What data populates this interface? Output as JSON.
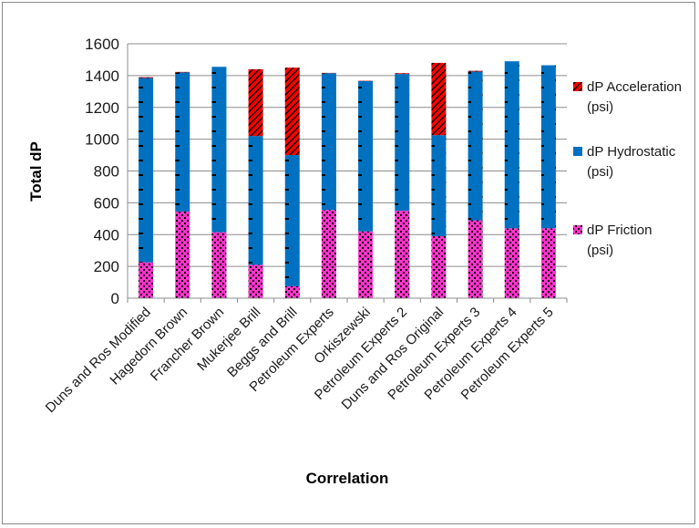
{
  "chart_data": {
    "type": "bar",
    "stacked": true,
    "xlabel": "Correlation",
    "ylabel": "Total dP",
    "ylim": [
      0,
      1600
    ],
    "yticks": [
      0,
      200,
      400,
      600,
      800,
      1000,
      1200,
      1400,
      1600
    ],
    "grid": "horizontal",
    "legend": "right",
    "categories": [
      "Duns and Ros Modified",
      "Hagedorn Brown",
      "Francher Brown",
      "Mukerjee Brill",
      "Beggs and Brill",
      "Petroleum Experts",
      "Orkiszewski",
      "Petroleum Experts 2",
      "Duns and Ros Original",
      "Petroleum Experts 3",
      "Petroleum Experts 4",
      "Petroleum Experts 5"
    ],
    "series": [
      {
        "name": "dP Friction (psi)",
        "color": "#ff33cc",
        "pattern": "dots",
        "values": [
          225,
          545,
          415,
          210,
          75,
          555,
          420,
          550,
          390,
          490,
          440,
          440
        ]
      },
      {
        "name": "dP Hydrostatic (psi)",
        "color": "#0070c0",
        "pattern": "dashes",
        "values": [
          1160,
          875,
          1040,
          810,
          825,
          860,
          945,
          860,
          635,
          935,
          1050,
          1025
        ]
      },
      {
        "name": "dP Acceleration (psi)",
        "color": "#ff0000",
        "pattern": "diagonal",
        "values": [
          5,
          3,
          0,
          420,
          550,
          2,
          2,
          5,
          455,
          5,
          0,
          0
        ]
      }
    ],
    "legend_entries": [
      {
        "series": 2,
        "line1": "dP Acceleration",
        "line2": "(psi)"
      },
      {
        "series": 1,
        "line1": "dP Hydrostatic",
        "line2": "(psi)"
      },
      {
        "series": 0,
        "line1": "dP Friction",
        "line2": "(psi)"
      }
    ]
  }
}
